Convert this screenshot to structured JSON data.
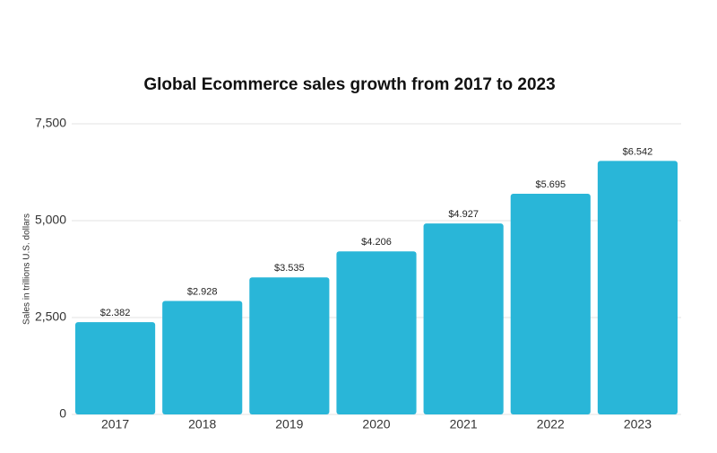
{
  "chart_data": {
    "type": "bar",
    "title": "Global Ecommerce sales growth from 2017 to 2023",
    "y_label": "Sales in trillions U.S. dollars",
    "categories": [
      "2017",
      "2018",
      "2019",
      "2020",
      "2021",
      "2022",
      "2023"
    ],
    "values": [
      2382,
      2928,
      3535,
      4206,
      4927,
      5695,
      6542
    ],
    "value_labels": [
      "$2.382",
      "$2.928",
      "$3.535",
      "$4.206",
      "$4.927",
      "$5.695",
      "$6.542"
    ],
    "color": "#29b6d8",
    "ylim": [
      0,
      7500
    ],
    "yticks": [
      0,
      {
        "value": 2500,
        "label": "2,500"
      },
      {
        "value": 5000,
        "label": "5,000"
      },
      {
        "value": 7500,
        "label": "7,500"
      }
    ],
    "grid": true
  }
}
